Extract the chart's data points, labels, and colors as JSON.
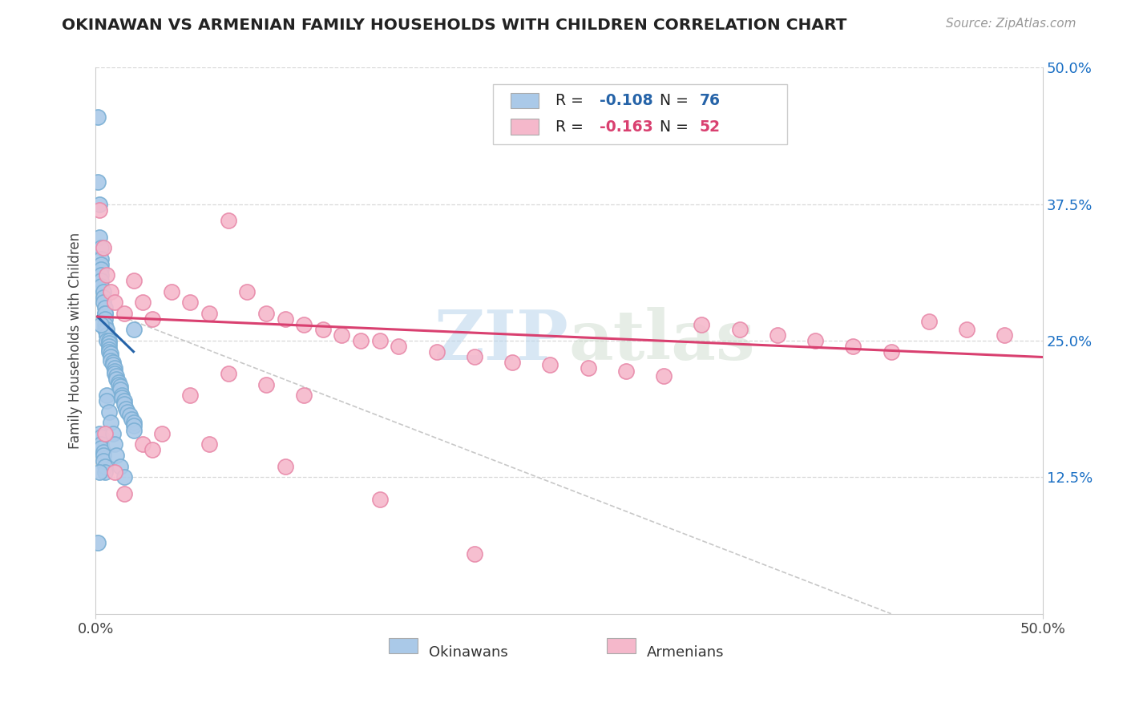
{
  "title": "OKINAWAN VS ARMENIAN FAMILY HOUSEHOLDS WITH CHILDREN CORRELATION CHART",
  "source_text": "Source: ZipAtlas.com",
  "ylabel": "Family Households with Children",
  "xlim": [
    0.0,
    0.5
  ],
  "ylim": [
    0.0,
    0.5
  ],
  "ytick_vals": [
    0.125,
    0.25,
    0.375,
    0.5
  ],
  "ytick_labels_right": [
    "12.5%",
    "25.0%",
    "37.5%",
    "50.0%"
  ],
  "legend_label1": "Okinawans",
  "legend_label2": "Armenians",
  "r1": -0.108,
  "n1": 76,
  "r2": -0.163,
  "n2": 52,
  "color1": "#aac9e8",
  "color2": "#f5b8cb",
  "color1_edge": "#7aafd4",
  "color2_edge": "#e88aaa",
  "line1_color": "#2563a8",
  "line2_color": "#d94070",
  "ref_line_color": "#c8c8c8",
  "watermark_color": "#d5e8f5",
  "grid_color": "#d8d8d8",
  "right_tick_color": "#1a6fc4",
  "title_color": "#222222",
  "source_color": "#999999",
  "okinawan_x": [
    0.001,
    0.001,
    0.002,
    0.002,
    0.003,
    0.003,
    0.003,
    0.003,
    0.003,
    0.003,
    0.003,
    0.004,
    0.004,
    0.004,
    0.005,
    0.005,
    0.005,
    0.005,
    0.005,
    0.005,
    0.006,
    0.006,
    0.006,
    0.006,
    0.007,
    0.007,
    0.007,
    0.007,
    0.007,
    0.008,
    0.008,
    0.008,
    0.009,
    0.009,
    0.01,
    0.01,
    0.01,
    0.011,
    0.011,
    0.012,
    0.012,
    0.013,
    0.013,
    0.014,
    0.014,
    0.015,
    0.015,
    0.016,
    0.017,
    0.018,
    0.019,
    0.02,
    0.02,
    0.02,
    0.002,
    0.003,
    0.003,
    0.003,
    0.004,
    0.004,
    0.004,
    0.005,
    0.005,
    0.006,
    0.006,
    0.007,
    0.008,
    0.009,
    0.01,
    0.011,
    0.013,
    0.015,
    0.001,
    0.002,
    0.003,
    0.02
  ],
  "okinawan_y": [
    0.455,
    0.395,
    0.375,
    0.345,
    0.335,
    0.325,
    0.32,
    0.315,
    0.31,
    0.305,
    0.3,
    0.295,
    0.29,
    0.285,
    0.28,
    0.275,
    0.275,
    0.27,
    0.265,
    0.26,
    0.26,
    0.255,
    0.255,
    0.25,
    0.25,
    0.248,
    0.245,
    0.242,
    0.24,
    0.238,
    0.235,
    0.232,
    0.23,
    0.228,
    0.225,
    0.222,
    0.22,
    0.218,
    0.215,
    0.212,
    0.21,
    0.208,
    0.205,
    0.2,
    0.198,
    0.195,
    0.192,
    0.188,
    0.185,
    0.182,
    0.178,
    0.175,
    0.172,
    0.168,
    0.165,
    0.162,
    0.155,
    0.152,
    0.148,
    0.145,
    0.14,
    0.135,
    0.13,
    0.2,
    0.195,
    0.185,
    0.175,
    0.165,
    0.155,
    0.145,
    0.135,
    0.125,
    0.065,
    0.13,
    0.265,
    0.26
  ],
  "armenian_x": [
    0.002,
    0.004,
    0.006,
    0.008,
    0.01,
    0.015,
    0.02,
    0.025,
    0.03,
    0.04,
    0.05,
    0.06,
    0.07,
    0.08,
    0.09,
    0.1,
    0.11,
    0.12,
    0.13,
    0.14,
    0.15,
    0.16,
    0.18,
    0.2,
    0.22,
    0.24,
    0.26,
    0.28,
    0.3,
    0.32,
    0.34,
    0.36,
    0.38,
    0.4,
    0.42,
    0.44,
    0.46,
    0.48,
    0.005,
    0.01,
    0.015,
    0.025,
    0.035,
    0.05,
    0.07,
    0.09,
    0.11,
    0.03,
    0.06,
    0.1,
    0.15,
    0.2
  ],
  "armenian_y": [
    0.37,
    0.335,
    0.31,
    0.295,
    0.285,
    0.275,
    0.305,
    0.285,
    0.27,
    0.295,
    0.285,
    0.275,
    0.36,
    0.295,
    0.275,
    0.27,
    0.265,
    0.26,
    0.255,
    0.25,
    0.25,
    0.245,
    0.24,
    0.235,
    0.23,
    0.228,
    0.225,
    0.222,
    0.218,
    0.265,
    0.26,
    0.255,
    0.25,
    0.245,
    0.24,
    0.268,
    0.26,
    0.255,
    0.165,
    0.13,
    0.11,
    0.155,
    0.165,
    0.2,
    0.22,
    0.21,
    0.2,
    0.15,
    0.155,
    0.135,
    0.105,
    0.055
  ],
  "ok_trendline_x": [
    0.001,
    0.02
  ],
  "ok_trendline_y": [
    0.272,
    0.24
  ],
  "arm_trendline_x": [
    0.001,
    0.5
  ],
  "arm_trendline_y": [
    0.272,
    0.235
  ],
  "ref_line_x": [
    0.017,
    0.42
  ],
  "ref_line_y": [
    0.27,
    0.0
  ]
}
